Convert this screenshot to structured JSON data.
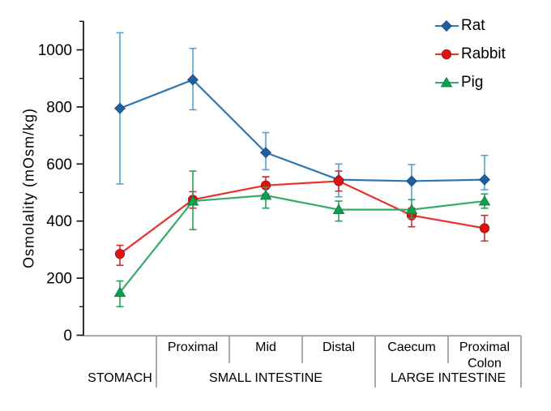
{
  "chart_data": {
    "type": "line",
    "title": "",
    "ylabel": "Osmolality  (mOsm/kg)",
    "ylim": [
      0,
      1100
    ],
    "yticks": [
      0,
      200,
      400,
      600,
      800,
      1000
    ],
    "minor_tick_step": 100,
    "grid": false,
    "legend_position": "top-right",
    "categories": [
      "Stomach",
      "Small intestine Proximal",
      "Small intestine Mid",
      "Small intestine Distal",
      "Caecum",
      "Proximal Colon"
    ],
    "x_axis_table": {
      "sub_cells": [
        {
          "lines": []
        },
        {
          "lines": [
            "Proximal"
          ]
        },
        {
          "lines": [
            "Mid"
          ]
        },
        {
          "lines": [
            "Distal"
          ]
        },
        {
          "lines": [
            "Caecum"
          ]
        },
        {
          "lines": [
            "Proximal",
            "Colon"
          ]
        }
      ],
      "groups": [
        {
          "label": "STOMACH",
          "span": 1
        },
        {
          "label": "SMALL INTESTINE",
          "span": 3
        },
        {
          "label": "LARGE INTESTINE",
          "span": 2
        }
      ]
    },
    "series": [
      {
        "name": "Rat",
        "marker": "diamond",
        "color": "#2e77b0",
        "marker_color": "#1f5f9e",
        "marker_stroke": "#174e80",
        "error_color": "#58a0cf",
        "values": [
          795,
          895,
          640,
          545,
          540,
          545
        ],
        "err_up": [
          265,
          110,
          70,
          55,
          58,
          85
        ],
        "err_down": [
          265,
          105,
          60,
          60,
          65,
          35
        ]
      },
      {
        "name": "Rabbit",
        "marker": "circle",
        "color": "#e6332e",
        "marker_color": "#e01212",
        "marker_stroke": "#9e0f0f",
        "error_color": "#d32b2b",
        "values": [
          285,
          475,
          525,
          540,
          420,
          375
        ],
        "err_up": [
          30,
          28,
          30,
          35,
          25,
          45
        ],
        "err_down": [
          40,
          30,
          30,
          35,
          40,
          45
        ]
      },
      {
        "name": "Pig",
        "marker": "triangle",
        "color": "#35aa6a",
        "marker_color": "#0da04f",
        "marker_stroke": "#0a7a3c",
        "error_color": "#2aa05c",
        "values": [
          150,
          470,
          490,
          440,
          440,
          470
        ],
        "err_up": [
          40,
          105,
          28,
          30,
          35,
          25
        ],
        "err_down": [
          50,
          100,
          45,
          40,
          30,
          25
        ]
      }
    ],
    "style": {
      "axis_color": "#1a1a1a",
      "table_line_color": "#8f8f8f",
      "text_color": "#000000",
      "background": "#ffffff"
    }
  }
}
